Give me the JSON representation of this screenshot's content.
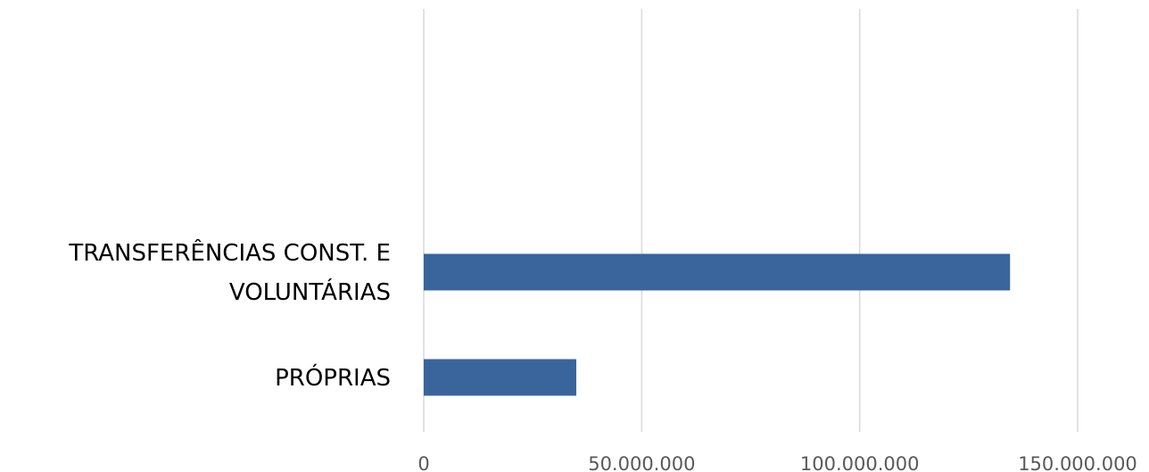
{
  "chart_data": {
    "type": "bar",
    "orientation": "horizontal",
    "categories": [
      "TRANSFERÊNCIAS CONST. E VOLUNTÁRIAS",
      "PRÓPRIAS"
    ],
    "category_label_lines": [
      [
        "TRANSFERÊNCIAS CONST. E",
        "VOLUNTÁRIAS"
      ],
      [
        "PRÓPRIAS"
      ]
    ],
    "values": [
      134500000,
      35000000
    ],
    "xlim": [
      0,
      150000000
    ],
    "x_ticks": [
      0,
      50000000,
      100000000,
      150000000
    ],
    "x_tick_labels": [
      "0",
      "50.000.000",
      "100.000.000",
      "150.000.000"
    ],
    "grid": "vertical",
    "legend": "none",
    "bar_color": "#3a649c",
    "grid_color": "#d9d9d9"
  }
}
